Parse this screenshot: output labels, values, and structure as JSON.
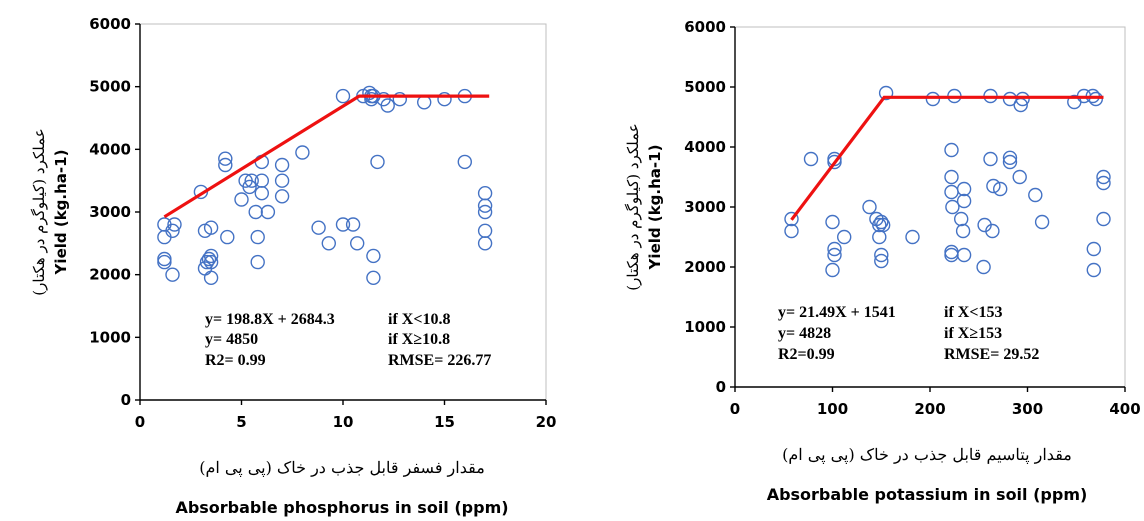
{
  "chart_data": [
    {
      "type": "scatter",
      "ylabel": "Yield (kg.ha-1)",
      "ylabel_fa": "عملکرد (کیلوگرم در هکتار)",
      "xlabel": "Absorbable phosphorus in soil (ppm)",
      "xlabel_fa": "مقدار فسفر قابل جذب در خاک (پی پی ام)",
      "xlim": [
        0,
        20
      ],
      "ylim": [
        0,
        6000
      ],
      "x_ticks": [
        0,
        5,
        10,
        15,
        20
      ],
      "y_ticks": [
        0,
        1000,
        2000,
        3000,
        4000,
        5000,
        6000
      ],
      "grid": false,
      "points": [
        [
          1.2,
          2800
        ],
        [
          1.2,
          2600
        ],
        [
          1.2,
          2250
        ],
        [
          1.2,
          2200
        ],
        [
          1.6,
          2700
        ],
        [
          1.7,
          2800
        ],
        [
          1.6,
          2000
        ],
        [
          3.0,
          3320
        ],
        [
          3.2,
          2700
        ],
        [
          3.2,
          2100
        ],
        [
          3.3,
          2200
        ],
        [
          3.4,
          2250
        ],
        [
          3.5,
          2750
        ],
        [
          3.5,
          2300
        ],
        [
          3.5,
          1950
        ],
        [
          3.5,
          2200
        ],
        [
          4.2,
          3850
        ],
        [
          4.2,
          3750
        ],
        [
          4.3,
          2600
        ],
        [
          5.0,
          3200
        ],
        [
          5.2,
          3500
        ],
        [
          5.4,
          3400
        ],
        [
          5.5,
          3500
        ],
        [
          5.7,
          3000
        ],
        [
          5.8,
          2200
        ],
        [
          5.8,
          2600
        ],
        [
          6.0,
          3800
        ],
        [
          6.0,
          3500
        ],
        [
          6.0,
          3300
        ],
        [
          6.3,
          3000
        ],
        [
          7.0,
          3750
        ],
        [
          7.0,
          3500
        ],
        [
          7.0,
          3250
        ],
        [
          8.0,
          3950
        ],
        [
          8.8,
          2750
        ],
        [
          9.3,
          2500
        ],
        [
          10.0,
          4850
        ],
        [
          10.0,
          2800
        ],
        [
          10.5,
          2800
        ],
        [
          10.7,
          2500
        ],
        [
          11.0,
          4850
        ],
        [
          11.3,
          4900
        ],
        [
          11.4,
          4850
        ],
        [
          11.4,
          4800
        ],
        [
          11.5,
          4850
        ],
        [
          11.5,
          2300
        ],
        [
          11.5,
          1950
        ],
        [
          11.7,
          3800
        ],
        [
          12.0,
          4800
        ],
        [
          12.2,
          4700
        ],
        [
          12.8,
          4800
        ],
        [
          14.0,
          4750
        ],
        [
          15.0,
          4800
        ],
        [
          16.0,
          4850
        ],
        [
          16.0,
          3800
        ],
        [
          17.0,
          3300
        ],
        [
          17.0,
          3100
        ],
        [
          17.0,
          3000
        ],
        [
          17.0,
          2700
        ],
        [
          17.0,
          2500
        ]
      ],
      "fit_line": [
        [
          1.2,
          2924
        ],
        [
          10.8,
          4850
        ],
        [
          17.2,
          4850
        ]
      ],
      "annotation": {
        "left": [
          "y= 198.8X + 2684.3",
          "y= 4850",
          "R2= 0.99"
        ],
        "right": [
          "if X<10.8",
          "if X≥10.8",
          "RMSE= 226.77"
        ]
      },
      "colors": {
        "points": "#4472c4",
        "fit": "#ee1111"
      }
    },
    {
      "type": "scatter",
      "ylabel": "Yield (kg.ha-1)",
      "ylabel_fa": "عملکرد (کیلوگرم در هکتار)",
      "xlabel": "Absorbable potassium in soil (ppm)",
      "xlabel_fa": "مقدار پتاسیم قابل جذب در خاک (پی پی ام)",
      "xlim": [
        0,
        400
      ],
      "ylim": [
        0,
        6000
      ],
      "x_ticks": [
        0,
        100,
        200,
        300,
        400
      ],
      "y_ticks": [
        0,
        1000,
        2000,
        3000,
        4000,
        5000,
        6000
      ],
      "grid": false,
      "points": [
        [
          58,
          2800
        ],
        [
          58,
          2600
        ],
        [
          78,
          3800
        ],
        [
          102,
          3800
        ],
        [
          102,
          3750
        ],
        [
          100,
          2750
        ],
        [
          102,
          2300
        ],
        [
          102,
          2200
        ],
        [
          100,
          1950
        ],
        [
          112,
          2500
        ],
        [
          138,
          3000
        ],
        [
          145,
          2800
        ],
        [
          148,
          2700
        ],
        [
          148,
          2500
        ],
        [
          150,
          2750
        ],
        [
          152,
          2700
        ],
        [
          150,
          2200
        ],
        [
          150,
          2100
        ],
        [
          155,
          4900
        ],
        [
          182,
          2500
        ],
        [
          203,
          4800
        ],
        [
          222,
          3950
        ],
        [
          222,
          3500
        ],
        [
          222,
          3250
        ],
        [
          223,
          3000
        ],
        [
          222,
          2250
        ],
        [
          222,
          2200
        ],
        [
          225,
          4850
        ],
        [
          232,
          2800
        ],
        [
          234,
          2600
        ],
        [
          235,
          3300
        ],
        [
          235,
          3100
        ],
        [
          235,
          2200
        ],
        [
          255,
          2000
        ],
        [
          256,
          2700
        ],
        [
          262,
          4850
        ],
        [
          262,
          3800
        ],
        [
          264,
          2600
        ],
        [
          265,
          3350
        ],
        [
          272,
          3300
        ],
        [
          282,
          4800
        ],
        [
          282,
          3820
        ],
        [
          282,
          3750
        ],
        [
          292,
          3500
        ],
        [
          293,
          4700
        ],
        [
          295,
          4800
        ],
        [
          308,
          3200
        ],
        [
          315,
          2750
        ],
        [
          348,
          4750
        ],
        [
          358,
          4850
        ],
        [
          367,
          4850
        ],
        [
          370,
          4800
        ],
        [
          368,
          2300
        ],
        [
          368,
          1950
        ],
        [
          378,
          3500
        ],
        [
          378,
          3400
        ],
        [
          378,
          2800
        ]
      ],
      "fit_line": [
        [
          58,
          2787
        ],
        [
          153,
          4828
        ],
        [
          378,
          4828
        ]
      ],
      "annotation": {
        "left": [
          "y= 21.49X + 1541",
          "y= 4828",
          "R2=0.99"
        ],
        "right": [
          "if X<153",
          "if X≥153",
          "RMSE= 29.52"
        ]
      },
      "colors": {
        "points": "#4472c4",
        "fit": "#ee1111"
      }
    }
  ]
}
